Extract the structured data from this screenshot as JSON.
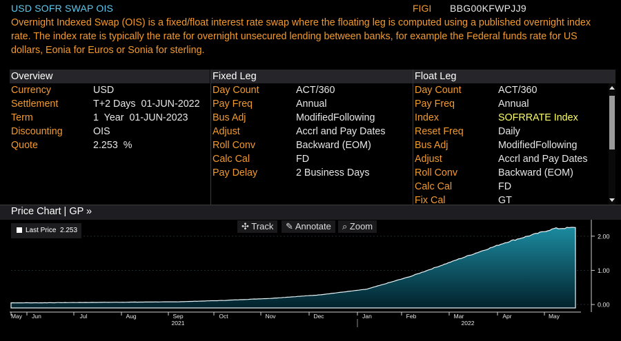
{
  "header": {
    "title": "USD SOFR SWAP OIS",
    "figi_label": "FIGI",
    "figi_value": "BBG00KFWPJJ9",
    "description": "Overnight Indexed Swap (OIS) is a fixed/float interest rate swap where the floating leg is computed using a published overnight index rate. The index rate is typically the rate for overnight unsecured lending between banks, for example the Federal funds rate for US dollars, Eonia for Euros or Sonia for sterling."
  },
  "overview": {
    "title": "Overview",
    "rows": [
      {
        "k": "Currency",
        "v": "USD"
      },
      {
        "k": "Settlement",
        "v": "T+2 Days  01-JUN-2022"
      },
      {
        "k": "Term",
        "v": "1  Year  01-JUN-2023"
      },
      {
        "k": "Discounting",
        "v": "OIS"
      },
      {
        "k": "Quote",
        "v": "2.253  %"
      }
    ]
  },
  "fixed_leg": {
    "title": "Fixed Leg",
    "rows": [
      {
        "k": "Day Count",
        "v": "ACT/360"
      },
      {
        "k": "Pay Freq",
        "v": "Annual"
      },
      {
        "k": "Bus Adj",
        "v": "ModifiedFollowing"
      },
      {
        "k": "Adjust",
        "v": "Accrl and Pay Dates"
      },
      {
        "k": "Roll Conv",
        "v": "Backward (EOM)"
      },
      {
        "k": "Calc Cal",
        "v": "FD"
      },
      {
        "k": "Pay Delay",
        "v": "2 Business Days"
      }
    ]
  },
  "float_leg": {
    "title": "Float Leg",
    "rows": [
      {
        "k": "Day Count",
        "v": "ACT/360"
      },
      {
        "k": "Pay Freq",
        "v": "Annual"
      },
      {
        "k": "Index",
        "v": "SOFRRATE Index",
        "highlight": true
      },
      {
        "k": "Reset Freq",
        "v": "Daily"
      },
      {
        "k": "Bus Adj",
        "v": "ModifiedFollowing"
      },
      {
        "k": "Adjust",
        "v": "Accrl and Pay Dates"
      },
      {
        "k": "Roll Conv",
        "v": "Backward (EOM)"
      },
      {
        "k": "Calc Cal",
        "v": "FD"
      },
      {
        "k": "Fix Cal",
        "v": "GT"
      }
    ]
  },
  "chart_header": "Price Chart | GP »",
  "toolbar": {
    "track": "Track",
    "annotate": "Annotate",
    "zoom": "Zoom"
  },
  "colors": {
    "label": "#f39a2d",
    "value": "#e6e6e6",
    "title": "#5ec9f0",
    "highlight": "#ffff66",
    "area_top": "#1c8ba0",
    "area_bottom": "#02222c"
  },
  "chart_data": {
    "type": "area",
    "legend": "Last Price",
    "legend_value": "2.253",
    "x_labels": [
      "May",
      "Jun",
      "Jul",
      "Aug",
      "Sep",
      "Oct",
      "Nov",
      "Dec",
      "Jan",
      "Feb",
      "Mar",
      "Apr",
      "May"
    ],
    "year_labels": [
      "2021",
      "2022"
    ],
    "y_ticks": [
      0.0,
      1.0,
      2.0
    ],
    "y_tick_labels": [
      "0.00",
      "1.00",
      "2.00"
    ],
    "ylim": [
      -0.1,
      2.4
    ],
    "month_points": [
      {
        "m": "Jun",
        "y": 0.05
      },
      {
        "m": "Jul",
        "y": 0.06
      },
      {
        "m": "Aug",
        "y": 0.07
      },
      {
        "m": "Sep",
        "y": 0.08
      },
      {
        "m": "Oct",
        "y": 0.12
      },
      {
        "m": "Nov",
        "y": 0.18
      },
      {
        "m": "Dec",
        "y": 0.28
      },
      {
        "m": "Jan",
        "y": 0.45
      },
      {
        "m": "Feb",
        "y": 0.83
      },
      {
        "m": "Mar",
        "y": 1.33
      },
      {
        "m": "Apr",
        "y": 1.83
      },
      {
        "m": "May",
        "y": 2.22
      }
    ],
    "last": 2.253
  }
}
